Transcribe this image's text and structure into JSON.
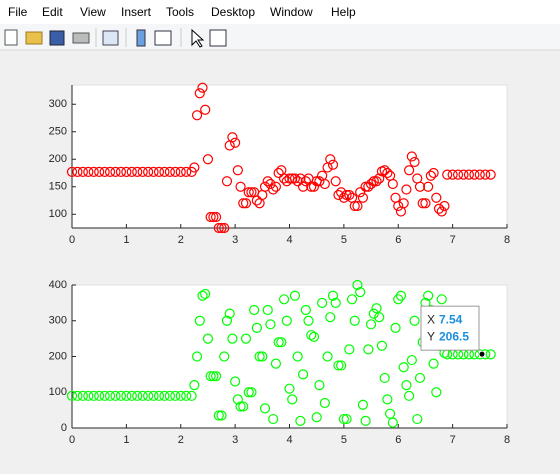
{
  "menu": [
    "File",
    "Edit",
    "View",
    "Insert",
    "Tools",
    "Desktop",
    "Window",
    "Help"
  ],
  "chart_data": [
    {
      "type": "scatter",
      "color": "#ff0000",
      "x": [
        0,
        0.1,
        0.2,
        0.3,
        0.4,
        0.5,
        0.6,
        0.7,
        0.8,
        0.9,
        1,
        1.1,
        1.2,
        1.3,
        1.4,
        1.5,
        1.6,
        1.7,
        1.8,
        1.9,
        2,
        2.1,
        2.2,
        2.25,
        2.3,
        2.35,
        2.4,
        2.45,
        2.5,
        2.55,
        2.6,
        2.65,
        2.7,
        2.75,
        2.8,
        2.85,
        2.9,
        2.95,
        3,
        3.05,
        3.1,
        3.15,
        3.2,
        3.25,
        3.3,
        3.35,
        3.4,
        3.45,
        3.5,
        3.55,
        3.6,
        3.65,
        3.7,
        3.75,
        3.8,
        3.85,
        3.9,
        3.95,
        4,
        4.05,
        4.1,
        4.15,
        4.2,
        4.25,
        4.3,
        4.35,
        4.4,
        4.45,
        4.5,
        4.55,
        4.6,
        4.65,
        4.7,
        4.75,
        4.8,
        4.85,
        4.9,
        4.95,
        5,
        5.05,
        5.1,
        5.15,
        5.2,
        5.25,
        5.3,
        5.35,
        5.4,
        5.45,
        5.5,
        5.55,
        5.6,
        5.65,
        5.7,
        5.75,
        5.8,
        5.85,
        5.9,
        5.95,
        6,
        6.05,
        6.1,
        6.15,
        6.2,
        6.25,
        6.3,
        6.35,
        6.4,
        6.45,
        6.5,
        6.55,
        6.6,
        6.65,
        6.7,
        6.75,
        6.8,
        6.85,
        6.9,
        7,
        7.1,
        7.2,
        7.3,
        7.4,
        7.5,
        7.6,
        7.7
      ],
      "values": [
        177,
        177,
        177,
        177,
        177,
        177,
        177,
        177,
        177,
        177,
        177,
        177,
        177,
        177,
        177,
        177,
        177,
        177,
        177,
        177,
        177,
        177,
        177,
        185,
        280,
        320,
        330,
        290,
        200,
        95,
        95,
        95,
        75,
        75,
        75,
        160,
        225,
        240,
        230,
        180,
        150,
        120,
        120,
        140,
        140,
        140,
        125,
        120,
        135,
        150,
        160,
        155,
        145,
        150,
        175,
        180,
        165,
        160,
        165,
        165,
        165,
        160,
        165,
        150,
        160,
        165,
        150,
        150,
        160,
        160,
        170,
        155,
        185,
        200,
        190,
        160,
        135,
        140,
        130,
        135,
        135,
        130,
        115,
        115,
        140,
        130,
        150,
        150,
        155,
        160,
        160,
        165,
        178,
        180,
        175,
        170,
        155,
        130,
        115,
        105,
        120,
        145,
        180,
        205,
        195,
        165,
        150,
        120,
        120,
        150,
        170,
        175,
        130,
        110,
        105,
        115,
        172,
        172,
        172,
        172,
        172,
        172,
        172,
        172,
        172
      ],
      "xlim": [
        0,
        8
      ],
      "xticks": [
        0,
        1,
        2,
        3,
        4,
        5,
        6,
        7,
        8
      ],
      "ylim": [
        75,
        335
      ],
      "yticks": [
        100,
        150,
        200,
        250,
        300
      ]
    },
    {
      "type": "scatter",
      "color": "#00ff00",
      "x": [
        0,
        0.1,
        0.2,
        0.3,
        0.4,
        0.5,
        0.6,
        0.7,
        0.8,
        0.9,
        1,
        1.1,
        1.2,
        1.3,
        1.4,
        1.5,
        1.6,
        1.7,
        1.8,
        1.9,
        2,
        2.1,
        2.2,
        2.25,
        2.3,
        2.35,
        2.4,
        2.45,
        2.5,
        2.55,
        2.6,
        2.65,
        2.7,
        2.75,
        2.8,
        2.85,
        2.9,
        2.95,
        3,
        3.05,
        3.1,
        3.15,
        3.2,
        3.25,
        3.3,
        3.35,
        3.4,
        3.45,
        3.5,
        3.55,
        3.6,
        3.65,
        3.7,
        3.75,
        3.8,
        3.85,
        3.9,
        3.95,
        4,
        4.05,
        4.1,
        4.15,
        4.2,
        4.25,
        4.3,
        4.35,
        4.4,
        4.45,
        4.5,
        4.55,
        4.6,
        4.65,
        4.7,
        4.75,
        4.8,
        4.85,
        4.9,
        4.95,
        5,
        5.05,
        5.1,
        5.15,
        5.2,
        5.25,
        5.3,
        5.35,
        5.4,
        5.45,
        5.5,
        5.55,
        5.6,
        5.65,
        5.7,
        5.75,
        5.8,
        5.85,
        5.9,
        5.95,
        6,
        6.05,
        6.1,
        6.15,
        6.2,
        6.25,
        6.3,
        6.35,
        6.4,
        6.45,
        6.5,
        6.55,
        6.6,
        6.65,
        6.7,
        6.75,
        6.8,
        6.85,
        6.9,
        7,
        7.1,
        7.2,
        7.3,
        7.4,
        7.5,
        7.6,
        7.7
      ],
      "values": [
        90,
        90,
        90,
        90,
        90,
        90,
        90,
        90,
        90,
        90,
        90,
        90,
        90,
        90,
        90,
        90,
        90,
        90,
        90,
        90,
        90,
        90,
        90,
        120,
        200,
        300,
        370,
        375,
        250,
        145,
        145,
        145,
        35,
        35,
        200,
        300,
        320,
        250,
        130,
        80,
        60,
        60,
        250,
        100,
        100,
        330,
        280,
        200,
        200,
        55,
        330,
        290,
        25,
        180,
        240,
        240,
        360,
        300,
        110,
        80,
        370,
        200,
        20,
        150,
        330,
        300,
        260,
        255,
        30,
        120,
        350,
        70,
        200,
        310,
        370,
        350,
        175,
        175,
        25,
        25,
        220,
        360,
        300,
        400,
        380,
        65,
        20,
        220,
        290,
        320,
        335,
        310,
        230,
        140,
        80,
        40,
        15,
        280,
        360,
        370,
        170,
        120,
        90,
        190,
        300,
        25,
        140,
        240,
        350,
        370,
        330,
        180,
        100,
        230,
        360,
        210,
        206,
        206,
        206,
        206,
        206,
        206,
        206,
        206,
        206
      ],
      "xlim": [
        0,
        8
      ],
      "xticks": [
        0,
        1,
        2,
        3,
        4,
        5,
        6,
        7,
        8
      ],
      "ylim": [
        0,
        400
      ],
      "yticks": [
        0,
        100,
        200,
        300,
        400
      ],
      "datatip": {
        "x_label": "X",
        "x": 7.54,
        "y_label": "Y",
        "y": 206.5
      }
    }
  ]
}
